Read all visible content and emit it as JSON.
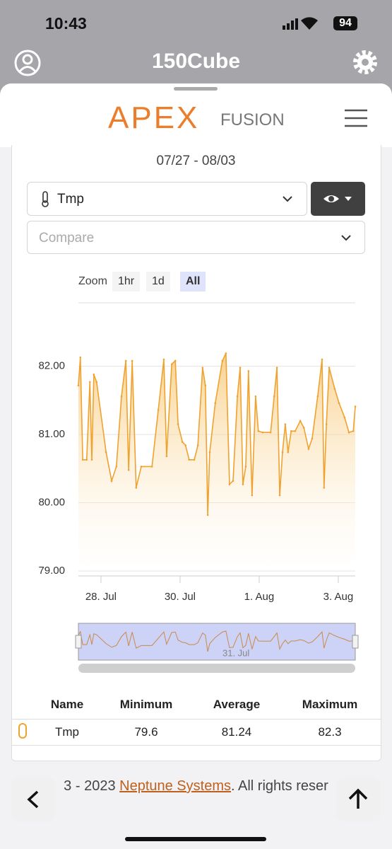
{
  "status_bar": {
    "time": "10:43",
    "battery": "94"
  },
  "header": {
    "title": "150Cube"
  },
  "logo": {
    "brand": "APEX",
    "suffix": "FUSION"
  },
  "date_range": "07/27 - 08/03",
  "selector": {
    "probe": "Tmp",
    "compare_placeholder": "Compare"
  },
  "zoom": {
    "label": "Zoom",
    "buttons": [
      "1hr",
      "1d",
      "All"
    ],
    "selected": 2
  },
  "chart_data": {
    "type": "area",
    "color": "#f0a22e",
    "grid": true,
    "x": [
      0,
      0.05,
      0.11,
      0.21,
      0.29,
      0.34,
      0.39,
      0.46,
      0.7,
      0.84,
      0.96,
      1.09,
      1.2,
      1.27,
      1.36,
      1.46,
      1.59,
      1.86,
      2.02,
      2.16,
      2.23,
      2.36,
      2.45,
      2.52,
      2.63,
      2.71,
      2.8,
      2.93,
      3.02,
      3.14,
      3.21,
      3.27,
      3.32,
      3.46,
      3.64,
      3.73,
      3.82,
      3.91,
      4.02,
      4.09,
      4.16,
      4.23,
      4.3,
      4.39,
      4.48,
      4.55,
      4.66,
      4.86,
      4.95,
      5.02,
      5.09,
      5.16,
      5.23,
      5.3,
      5.38,
      5.48,
      5.61,
      5.7,
      5.82,
      5.91,
      6.05,
      6.16,
      6.21,
      6.27,
      6.34,
      6.48,
      6.59,
      6.73,
      6.84,
      6.95,
      7.0
    ],
    "values": [
      81.72,
      82.13,
      80.63,
      80.63,
      81.77,
      80.63,
      81.88,
      81.77,
      80.74,
      80.32,
      80.53,
      81.56,
      82.08,
      80.48,
      82.08,
      80.22,
      80.53,
      80.53,
      81.36,
      82.1,
      80.68,
      82.03,
      82.08,
      81.15,
      80.89,
      80.84,
      80.63,
      80.63,
      80.84,
      81.98,
      81.72,
      79.82,
      80.74,
      81.46,
      82.08,
      82.19,
      80.27,
      80.32,
      81.56,
      81.98,
      80.27,
      80.53,
      81.93,
      80.11,
      81.56,
      81.05,
      81.03,
      81.03,
      81.56,
      81.98,
      80.11,
      80.74,
      81.15,
      80.74,
      81.05,
      81.05,
      81.2,
      81.1,
      80.79,
      80.94,
      81.56,
      82.1,
      80.22,
      81.15,
      81.98,
      81.67,
      81.46,
      81.25,
      81.03,
      81.05,
      81.41
    ],
    "xlim": [
      0,
      7
    ],
    "xticks": [
      {
        "value": 0.57,
        "label": "28. Jul"
      },
      {
        "value": 2.57,
        "label": "30. Jul"
      },
      {
        "value": 4.57,
        "label": "1. Aug"
      },
      {
        "value": 6.57,
        "label": "3. Aug"
      }
    ],
    "ylim": [
      79,
      82.93
    ],
    "yticks": [
      {
        "value": 79,
        "label": "79.00"
      },
      {
        "value": 80,
        "label": "80.00"
      },
      {
        "value": 81,
        "label": "81.00"
      },
      {
        "value": 82,
        "label": "82.00"
      }
    ],
    "navigator_label": "31. Jul"
  },
  "table": {
    "headers": [
      "Name",
      "Minimum",
      "Average",
      "Maximum"
    ],
    "rows": [
      [
        "Tmp",
        79.6,
        81.24,
        82.3
      ]
    ]
  },
  "footer": {
    "before": "3 - 2023",
    "link": "Neptune Systems",
    "after": ". All rights reser"
  }
}
